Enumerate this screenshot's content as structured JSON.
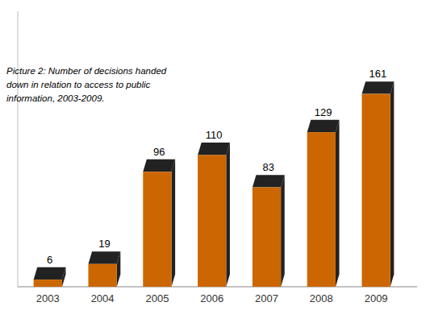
{
  "chart_data": {
    "type": "bar",
    "annotations": [
      "Picture 2: Number of decisions handed",
      "down in relation to access to public",
      "information, 2003-2009."
    ],
    "categories": [
      "2003",
      "2004",
      "2005",
      "2006",
      "2007",
      "2008",
      "2009"
    ],
    "values": [
      6,
      19,
      96,
      110,
      83,
      129,
      161
    ],
    "color": "#CC6600",
    "ylim": [
      0,
      230
    ],
    "grid": false,
    "data_labels": true,
    "tick_labels": "x"
  }
}
